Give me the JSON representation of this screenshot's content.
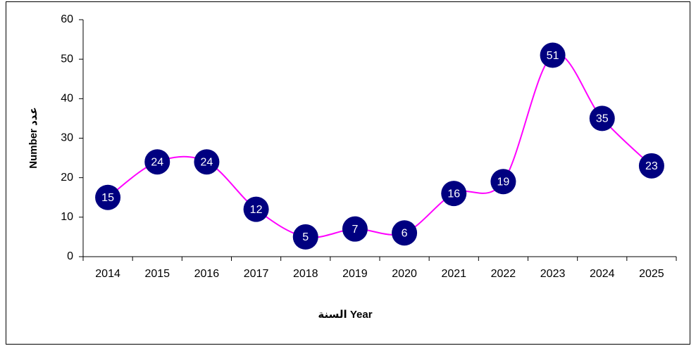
{
  "chart_data": {
    "type": "line",
    "xlabel": "السنة Year",
    "ylabel": "Number عدد",
    "categories": [
      "2014",
      "2015",
      "2016",
      "2017",
      "2018",
      "2019",
      "2020",
      "2021",
      "2022",
      "2023",
      "2024",
      "2025"
    ],
    "values": [
      15,
      24,
      24,
      12,
      5,
      7,
      6,
      16,
      19,
      51,
      35,
      23
    ],
    "color": "#ff00ff",
    "marker_color": "#000080",
    "smooth": true,
    "ylim": [
      0,
      60
    ],
    "yticks": [
      0,
      10,
      20,
      30,
      40,
      50,
      60
    ],
    "grid": false
  }
}
